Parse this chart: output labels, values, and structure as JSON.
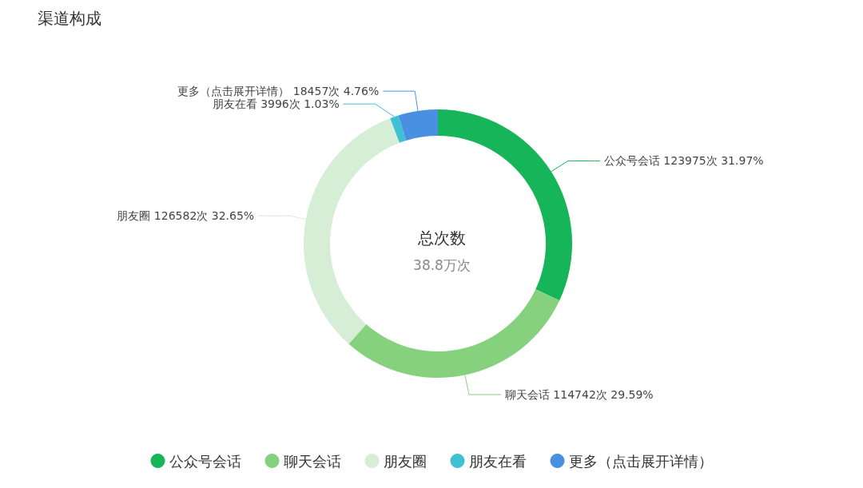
{
  "chart_data": {
    "type": "donut",
    "title": "渠道构成",
    "categories": [
      "公众号会话",
      "聊天会话",
      "朋友圈",
      "朋友在看",
      "更多（点击展开详情）"
    ],
    "values": [
      123975,
      114742,
      126582,
      3996,
      18457
    ],
    "value_labels": [
      "123975次 31.97%",
      "114742次 29.59%",
      "126582次 32.65%",
      "3996次 1.03%",
      "18457次 4.76%"
    ],
    "colors": [
      "#17b55a",
      "#86d17d",
      "#d5eed5",
      "#3fc1d3",
      "#4a90e2"
    ],
    "annotations": [
      "总次数",
      "38.8万次"
    ],
    "legend": "bottom"
  }
}
